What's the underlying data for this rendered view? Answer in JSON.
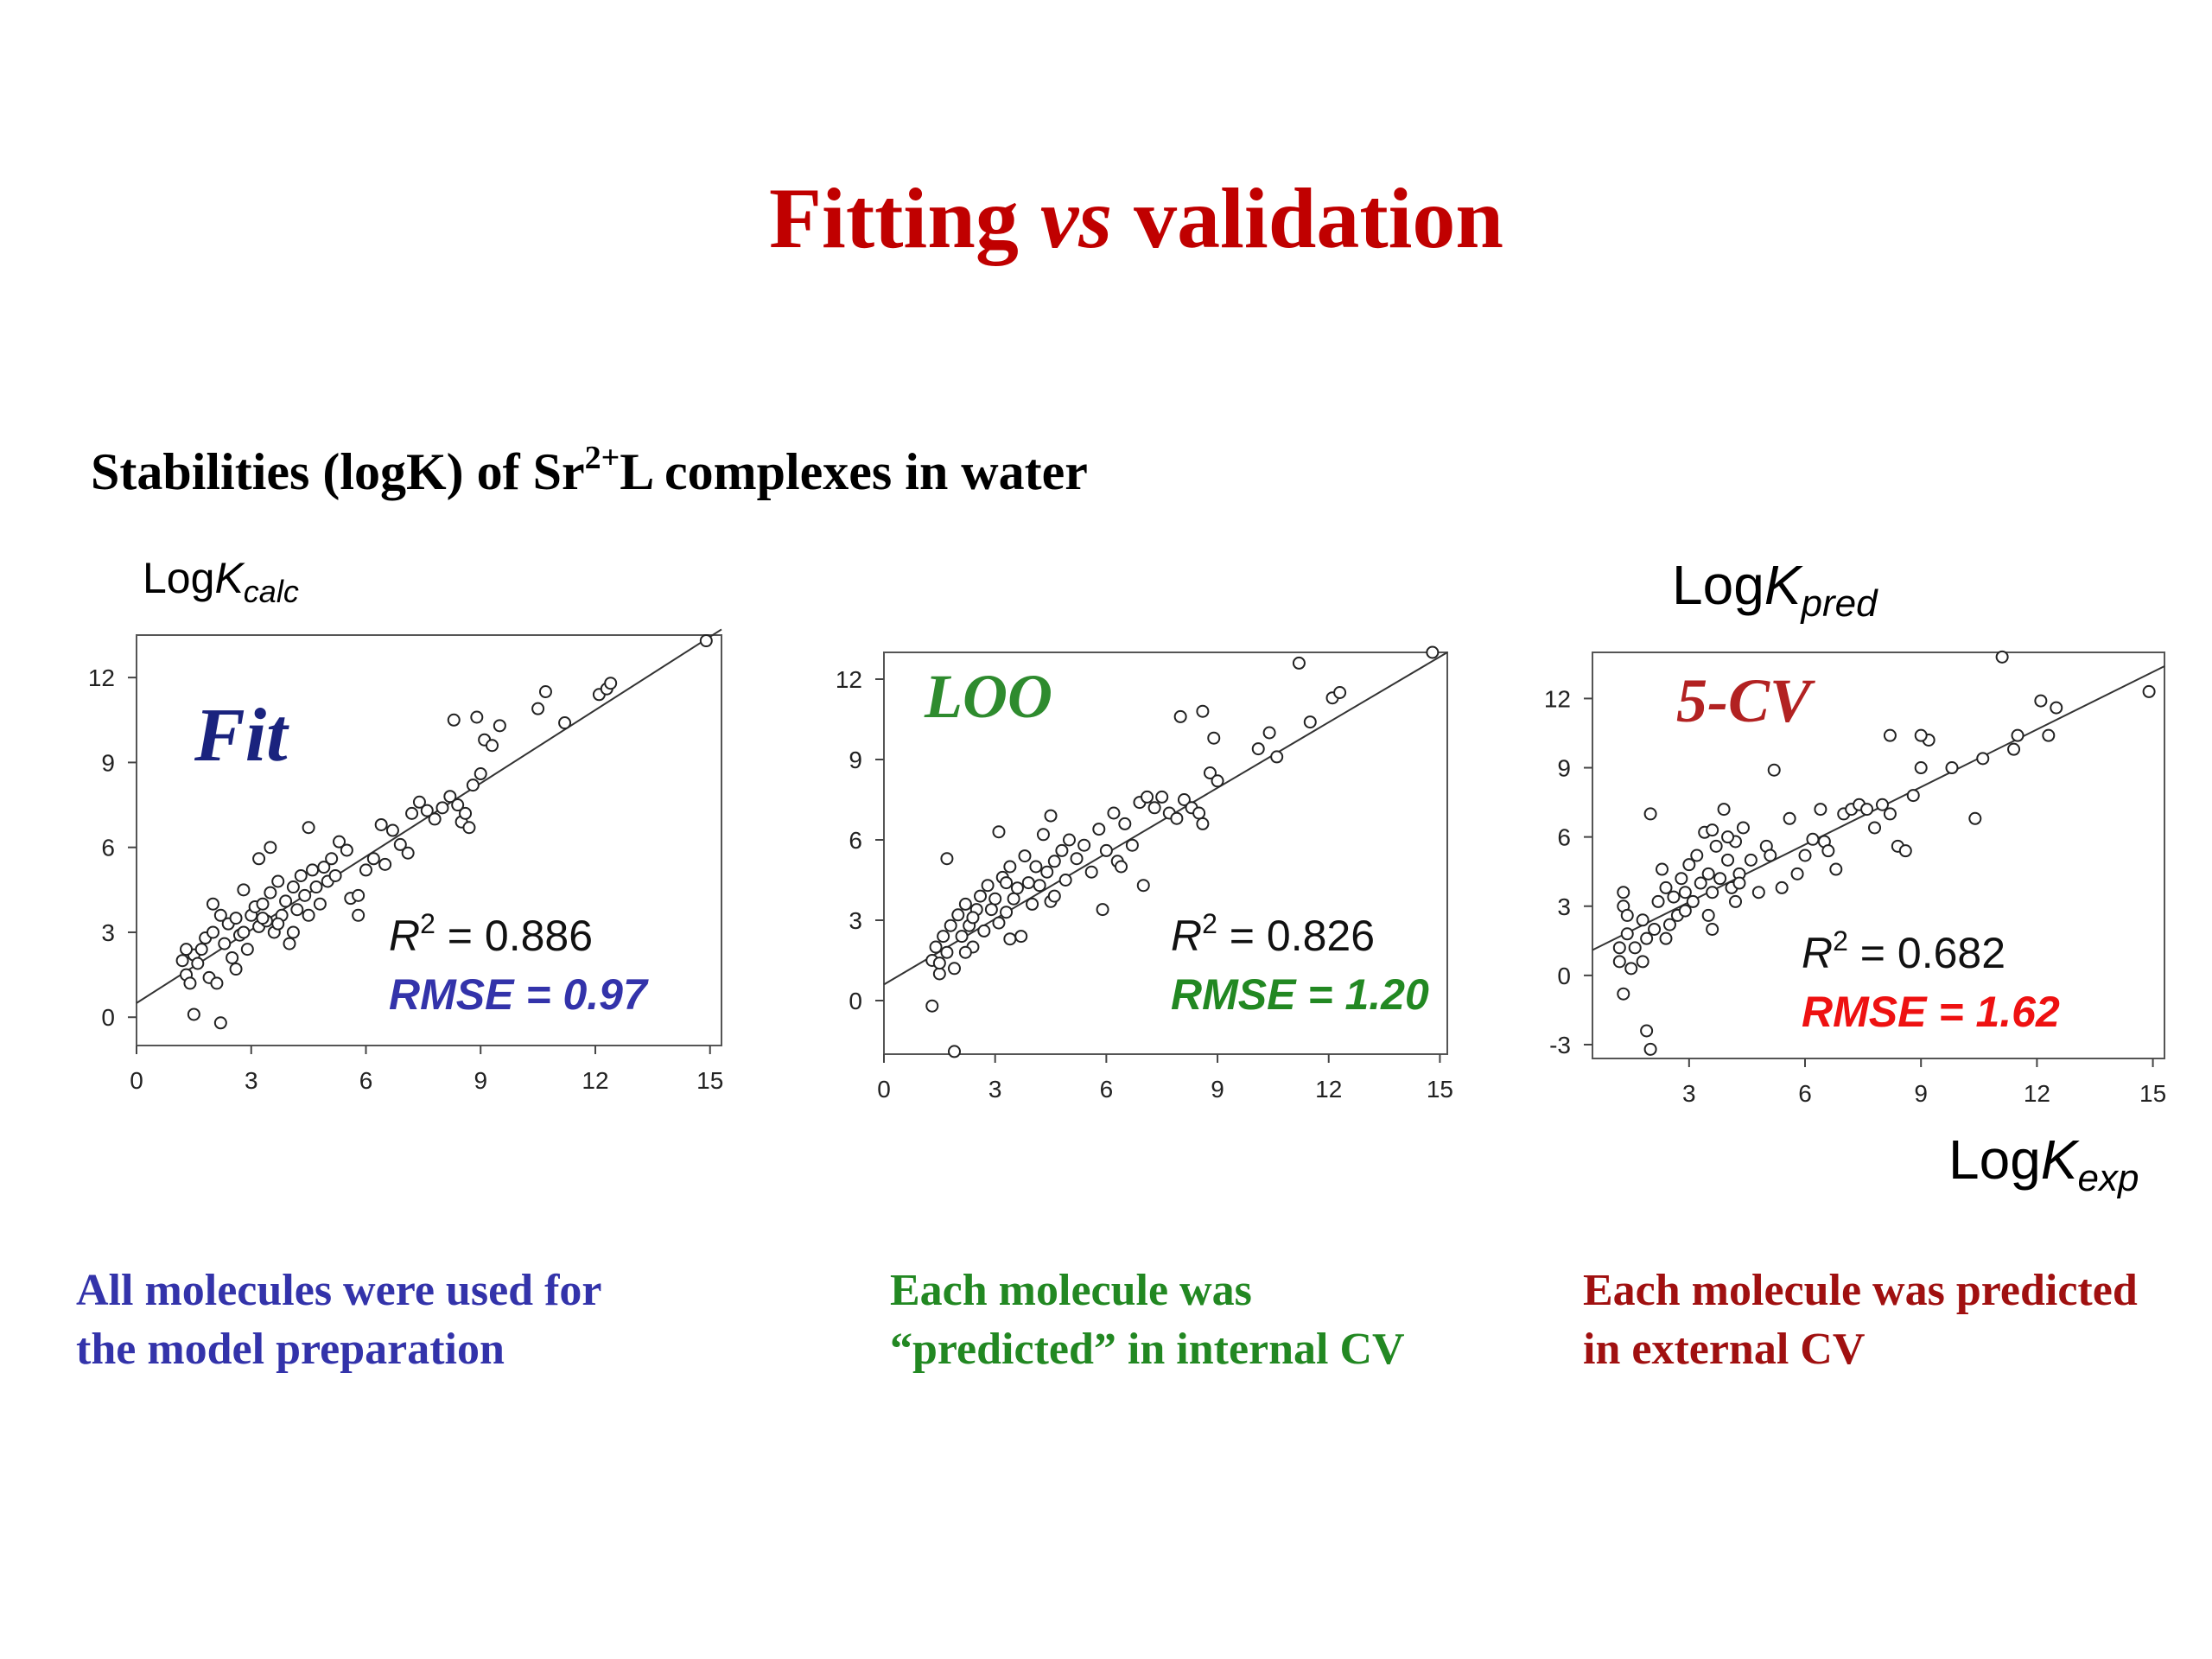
{
  "slide": {
    "title_part1": "Fitting",
    "title_vs": "vs",
    "title_part2": "validation",
    "subtitle_part1": "Stabilities (logK) of Sr",
    "subtitle_sup": "2+",
    "subtitle_part2": "L complexes in water",
    "ylabel_calc_main": "Log",
    "ylabel_calc_k": "K",
    "ylabel_calc_sub": "calc",
    "ylabel_pred_main": "Log",
    "ylabel_pred_k": "K",
    "ylabel_pred_sub": "pred",
    "xlabel_exp_main": "Log",
    "xlabel_exp_k": "K",
    "xlabel_exp_sub": "exp",
    "captions": [
      {
        "line1": "All molecules were used for",
        "line2": "the model preparation"
      },
      {
        "line1": "Each molecule was",
        "line2": "“predicted” in internal CV"
      },
      {
        "line1": "Each molecule was predicted",
        "line2": "in external CV"
      }
    ]
  },
  "chart_data": [
    {
      "type": "scatter",
      "label": "Fit",
      "label_color": "#1a237e",
      "r2_text": "= 0.886",
      "rmse_text": "RMSE = 0.97",
      "rmse_color": "#3333aa",
      "xlim": [
        0,
        15.3
      ],
      "ylim": [
        -1,
        13.5
      ],
      "xticks": [
        0,
        3,
        6,
        9,
        12,
        15
      ],
      "yticks": [
        0,
        3,
        6,
        9,
        12
      ],
      "fit_line": [
        [
          0,
          0.5
        ],
        [
          15.3,
          13.7
        ]
      ],
      "points": [
        [
          1.2,
          2.0
        ],
        [
          1.3,
          1.5
        ],
        [
          1.4,
          1.2
        ],
        [
          1.5,
          2.2
        ],
        [
          1.3,
          2.4
        ],
        [
          1.6,
          1.9
        ],
        [
          1.8,
          2.8
        ],
        [
          1.9,
          1.4
        ],
        [
          2.0,
          3.0
        ],
        [
          2.1,
          1.2
        ],
        [
          2.3,
          2.6
        ],
        [
          2.4,
          3.3
        ],
        [
          2.5,
          2.1
        ],
        [
          2.6,
          3.5
        ],
        [
          2.7,
          2.9
        ],
        [
          2.8,
          3.0
        ],
        [
          2.9,
          2.4
        ],
        [
          3.0,
          3.6
        ],
        [
          3.1,
          3.9
        ],
        [
          3.2,
          3.2
        ],
        [
          3.3,
          4.0
        ],
        [
          3.4,
          3.4
        ],
        [
          3.5,
          4.4
        ],
        [
          3.6,
          3.0
        ],
        [
          3.7,
          4.8
        ],
        [
          3.8,
          3.6
        ],
        [
          3.9,
          4.1
        ],
        [
          4.0,
          2.6
        ],
        [
          4.1,
          4.6
        ],
        [
          4.2,
          3.8
        ],
        [
          4.3,
          5.0
        ],
        [
          4.4,
          4.3
        ],
        [
          4.5,
          3.6
        ],
        [
          4.6,
          5.2
        ],
        [
          4.7,
          4.6
        ],
        [
          4.8,
          4.0
        ],
        [
          4.9,
          5.3
        ],
        [
          5.0,
          4.8
        ],
        [
          5.1,
          5.6
        ],
        [
          5.2,
          5.0
        ],
        [
          5.3,
          6.2
        ],
        [
          5.5,
          5.9
        ],
        [
          5.6,
          4.2
        ],
        [
          5.8,
          3.6
        ],
        [
          6.0,
          5.2
        ],
        [
          6.2,
          5.6
        ],
        [
          6.4,
          6.8
        ],
        [
          6.5,
          5.4
        ],
        [
          6.7,
          6.6
        ],
        [
          6.9,
          6.1
        ],
        [
          7.1,
          5.8
        ],
        [
          7.2,
          7.2
        ],
        [
          7.4,
          7.6
        ],
        [
          7.6,
          7.3
        ],
        [
          7.8,
          7.0
        ],
        [
          8.0,
          7.4
        ],
        [
          8.2,
          7.8
        ],
        [
          8.4,
          7.5
        ],
        [
          8.5,
          6.9
        ],
        [
          8.6,
          7.2
        ],
        [
          8.7,
          6.7
        ],
        [
          8.8,
          8.2
        ],
        [
          9.0,
          8.6
        ],
        [
          8.3,
          10.5
        ],
        [
          8.9,
          10.6
        ],
        [
          9.1,
          9.8
        ],
        [
          9.3,
          9.6
        ],
        [
          9.5,
          10.3
        ],
        [
          10.5,
          10.9
        ],
        [
          10.7,
          11.5
        ],
        [
          11.2,
          10.4
        ],
        [
          12.1,
          11.4
        ],
        [
          12.3,
          11.6
        ],
        [
          12.4,
          11.8
        ],
        [
          14.9,
          13.3
        ],
        [
          4.5,
          6.7
        ],
        [
          3.7,
          3.3
        ],
        [
          2.2,
          3.6
        ],
        [
          2.0,
          4.0
        ],
        [
          3.2,
          5.6
        ],
        [
          2.8,
          4.5
        ],
        [
          1.5,
          0.1
        ],
        [
          2.2,
          -0.2
        ],
        [
          1.7,
          2.4
        ],
        [
          2.6,
          1.7
        ],
        [
          3.5,
          6.0
        ],
        [
          4.1,
          3.0
        ],
        [
          3.3,
          3.5
        ],
        [
          5.8,
          4.3
        ]
      ]
    },
    {
      "type": "scatter",
      "label": "LOO",
      "label_color": "#2e8b2e",
      "r2_text": "= 0.826",
      "rmse_text": "RMSE = 1.20",
      "rmse_color": "#228822",
      "xlim": [
        0,
        15.2
      ],
      "ylim": [
        -2,
        13
      ],
      "xticks": [
        0,
        3,
        6,
        9,
        12,
        15
      ],
      "yticks": [
        0,
        3,
        6,
        9,
        12
      ],
      "fit_line": [
        [
          0,
          0.6
        ],
        [
          15.2,
          13.0
        ]
      ],
      "points": [
        [
          1.3,
          1.5
        ],
        [
          1.4,
          2.0
        ],
        [
          1.5,
          1.0
        ],
        [
          1.6,
          2.4
        ],
        [
          1.7,
          1.8
        ],
        [
          1.8,
          2.8
        ],
        [
          1.9,
          1.2
        ],
        [
          2.0,
          3.2
        ],
        [
          2.1,
          2.4
        ],
        [
          2.2,
          3.6
        ],
        [
          2.3,
          2.8
        ],
        [
          2.4,
          2.0
        ],
        [
          2.5,
          3.4
        ],
        [
          2.6,
          3.9
        ],
        [
          2.7,
          2.6
        ],
        [
          2.8,
          4.3
        ],
        [
          2.9,
          3.4
        ],
        [
          3.0,
          3.8
        ],
        [
          3.1,
          2.9
        ],
        [
          3.2,
          4.6
        ],
        [
          3.3,
          3.3
        ],
        [
          3.4,
          5.0
        ],
        [
          3.5,
          3.8
        ],
        [
          3.6,
          4.2
        ],
        [
          3.7,
          2.4
        ],
        [
          3.8,
          5.4
        ],
        [
          3.9,
          4.4
        ],
        [
          4.0,
          3.6
        ],
        [
          4.1,
          5.0
        ],
        [
          4.2,
          4.3
        ],
        [
          4.3,
          6.2
        ],
        [
          4.4,
          4.8
        ],
        [
          4.5,
          3.7
        ],
        [
          4.6,
          5.2
        ],
        [
          4.8,
          5.6
        ],
        [
          4.9,
          4.5
        ],
        [
          5.0,
          6.0
        ],
        [
          5.2,
          5.3
        ],
        [
          5.4,
          5.8
        ],
        [
          5.6,
          4.8
        ],
        [
          5.8,
          6.4
        ],
        [
          6.0,
          5.6
        ],
        [
          6.2,
          7.0
        ],
        [
          6.3,
          5.2
        ],
        [
          6.5,
          6.6
        ],
        [
          6.7,
          5.8
        ],
        [
          6.9,
          7.4
        ],
        [
          7.1,
          7.6
        ],
        [
          7.3,
          7.2
        ],
        [
          7.5,
          7.6
        ],
        [
          7.7,
          7.0
        ],
        [
          7.9,
          6.8
        ],
        [
          8.1,
          7.5
        ],
        [
          8.3,
          7.2
        ],
        [
          8.5,
          7.0
        ],
        [
          8.6,
          6.6
        ],
        [
          8.8,
          8.5
        ],
        [
          9.0,
          8.2
        ],
        [
          8.0,
          10.6
        ],
        [
          8.6,
          10.8
        ],
        [
          8.9,
          9.8
        ],
        [
          10.1,
          9.4
        ],
        [
          10.4,
          10.0
        ],
        [
          10.6,
          9.1
        ],
        [
          11.2,
          12.6
        ],
        [
          11.5,
          10.4
        ],
        [
          12.1,
          11.3
        ],
        [
          12.3,
          11.5
        ],
        [
          14.8,
          13.0
        ],
        [
          1.3,
          -0.2
        ],
        [
          1.9,
          -1.9
        ],
        [
          1.7,
          5.3
        ],
        [
          3.1,
          6.3
        ],
        [
          4.5,
          6.9
        ],
        [
          5.9,
          3.4
        ],
        [
          7.0,
          4.3
        ],
        [
          3.4,
          2.3
        ],
        [
          2.4,
          3.1
        ],
        [
          3.3,
          4.4
        ],
        [
          4.6,
          3.9
        ],
        [
          2.2,
          1.8
        ],
        [
          6.4,
          5.0
        ],
        [
          1.5,
          1.4
        ]
      ]
    },
    {
      "type": "scatter",
      "label": "5-CV",
      "label_color": "#b22222",
      "r2_text": "= 0.682",
      "rmse_text": "RMSE = 1.62",
      "rmse_color": "#ee1111",
      "xlim": [
        0.5,
        15.3
      ],
      "ylim": [
        -3.6,
        14
      ],
      "xticks": [
        3,
        6,
        9,
        12,
        15
      ],
      "yticks": [
        -3,
        0,
        3,
        6,
        9,
        12
      ],
      "fit_line": [
        [
          0.5,
          1.1
        ],
        [
          15.3,
          13.4
        ]
      ],
      "points": [
        [
          1.2,
          1.2
        ],
        [
          1.2,
          0.6
        ],
        [
          1.3,
          3.6
        ],
        [
          1.3,
          3.0
        ],
        [
          1.4,
          2.6
        ],
        [
          1.4,
          1.8
        ],
        [
          1.5,
          0.3
        ],
        [
          1.6,
          1.2
        ],
        [
          1.8,
          2.4
        ],
        [
          1.9,
          1.6
        ],
        [
          2.0,
          7.0
        ],
        [
          2.1,
          2.0
        ],
        [
          2.2,
          3.2
        ],
        [
          2.3,
          4.6
        ],
        [
          2.4,
          3.8
        ],
        [
          2.5,
          2.2
        ],
        [
          2.6,
          3.4
        ],
        [
          2.7,
          2.6
        ],
        [
          2.8,
          4.2
        ],
        [
          2.9,
          3.6
        ],
        [
          3.0,
          4.8
        ],
        [
          3.1,
          3.2
        ],
        [
          3.2,
          5.2
        ],
        [
          3.3,
          4.0
        ],
        [
          3.4,
          6.2
        ],
        [
          3.5,
          4.4
        ],
        [
          3.6,
          3.6
        ],
        [
          3.7,
          5.6
        ],
        [
          3.8,
          4.2
        ],
        [
          3.9,
          7.2
        ],
        [
          4.0,
          5.0
        ],
        [
          4.1,
          3.8
        ],
        [
          4.2,
          5.8
        ],
        [
          4.3,
          4.4
        ],
        [
          4.4,
          6.4
        ],
        [
          4.6,
          5.0
        ],
        [
          4.8,
          3.6
        ],
        [
          5.0,
          5.6
        ],
        [
          5.2,
          8.9
        ],
        [
          5.4,
          3.8
        ],
        [
          5.6,
          6.8
        ],
        [
          5.8,
          4.4
        ],
        [
          6.0,
          5.2
        ],
        [
          6.2,
          5.9
        ],
        [
          6.4,
          7.2
        ],
        [
          6.5,
          5.8
        ],
        [
          6.6,
          5.4
        ],
        [
          6.8,
          4.6
        ],
        [
          7.0,
          7.0
        ],
        [
          7.2,
          7.2
        ],
        [
          7.4,
          7.4
        ],
        [
          7.6,
          7.2
        ],
        [
          7.8,
          6.4
        ],
        [
          8.0,
          7.4
        ],
        [
          8.2,
          7.0
        ],
        [
          8.4,
          5.6
        ],
        [
          8.6,
          5.4
        ],
        [
          8.8,
          7.8
        ],
        [
          9.0,
          9.0
        ],
        [
          9.2,
          10.2
        ],
        [
          8.2,
          10.4
        ],
        [
          9.0,
          10.4
        ],
        [
          9.8,
          9.0
        ],
        [
          10.4,
          6.8
        ],
        [
          10.6,
          9.4
        ],
        [
          11.1,
          13.8
        ],
        [
          11.4,
          9.8
        ],
        [
          11.5,
          10.4
        ],
        [
          12.1,
          11.9
        ],
        [
          12.3,
          10.4
        ],
        [
          12.5,
          11.6
        ],
        [
          14.9,
          12.3
        ],
        [
          1.3,
          -0.8
        ],
        [
          1.9,
          -2.4
        ],
        [
          2.0,
          -3.2
        ],
        [
          2.4,
          1.6
        ],
        [
          3.5,
          2.6
        ],
        [
          3.6,
          2.0
        ],
        [
          4.3,
          4.0
        ],
        [
          4.2,
          3.2
        ],
        [
          4.0,
          6.0
        ],
        [
          5.1,
          5.2
        ],
        [
          2.9,
          2.8
        ],
        [
          3.6,
          6.3
        ],
        [
          1.8,
          0.6
        ]
      ]
    }
  ]
}
